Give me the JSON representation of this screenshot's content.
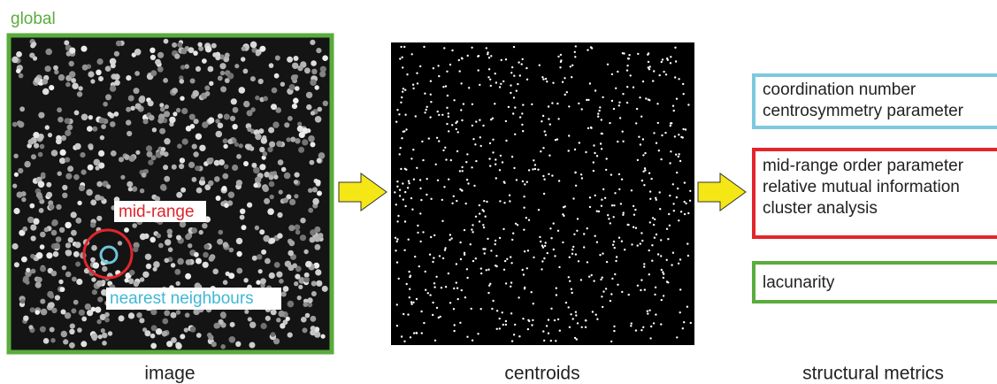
{
  "labels": {
    "global": "global",
    "mid_range": "mid-range",
    "nearest": "nearest neighbours"
  },
  "captions": [
    "image",
    "centroids",
    "structural metrics"
  ],
  "metrics": [
    {
      "lines": [
        "coordination number",
        "centrosymmetry parameter"
      ]
    },
    {
      "lines": [
        "mid-range order parameter",
        "relative mutual information",
        "cluster analysis"
      ]
    },
    {
      "lines": [
        "lacunarity"
      ]
    }
  ]
}
